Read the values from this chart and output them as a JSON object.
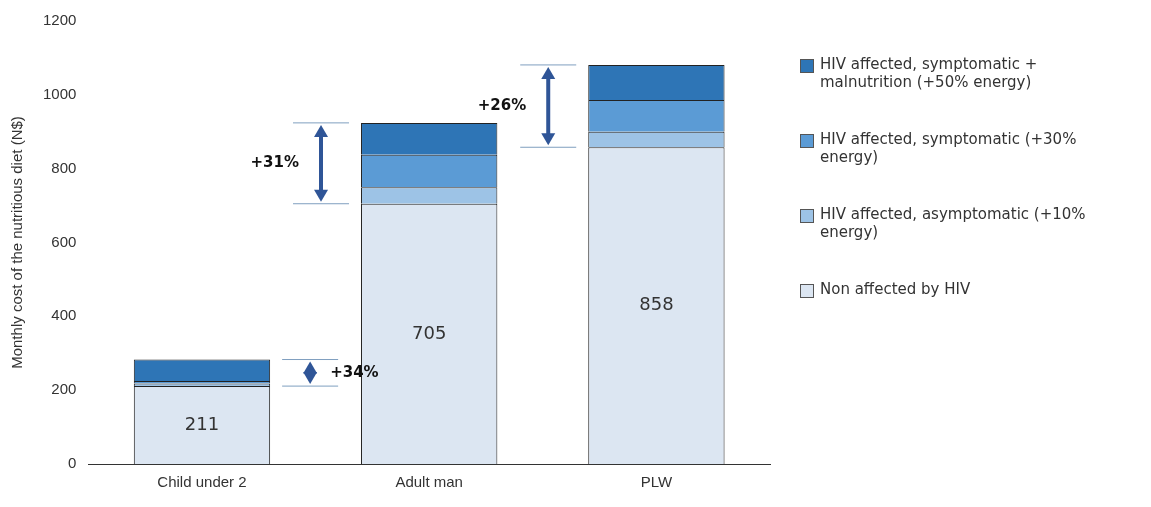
{
  "chart_data": {
    "type": "bar",
    "stacked": true,
    "ylabel": "Monthly cost of the nutritious diet (N$)",
    "categories": [
      "Child under 2",
      "Adult man",
      "PLW"
    ],
    "series": [
      {
        "name": "Non affected by HIV",
        "color": "#dce6f2",
        "values": [
          211,
          705,
          858
        ],
        "value_labels": [
          "211",
          "705",
          "858"
        ]
      },
      {
        "name": "HIV affected, asymptomatic (+10% energy)",
        "color": "#9dc3e6",
        "values": [
          7,
          45,
          42
        ]
      },
      {
        "name": "HIV affected, symptomatic (+30% energy)",
        "color": "#5b9bd5",
        "values": [
          7,
          88,
          86
        ]
      },
      {
        "name": "HIV affected, symptomatic + malnutrition (+50% energy)",
        "color": "#2e75b6",
        "values": [
          58,
          86,
          95
        ]
      }
    ],
    "ylim": [
      0,
      1200
    ],
    "yticks": [
      0,
      200,
      400,
      600,
      800,
      1000,
      1200
    ],
    "grid": false,
    "legend": "right",
    "annotations": [
      "+34%",
      "+31%",
      "+26%"
    ]
  }
}
